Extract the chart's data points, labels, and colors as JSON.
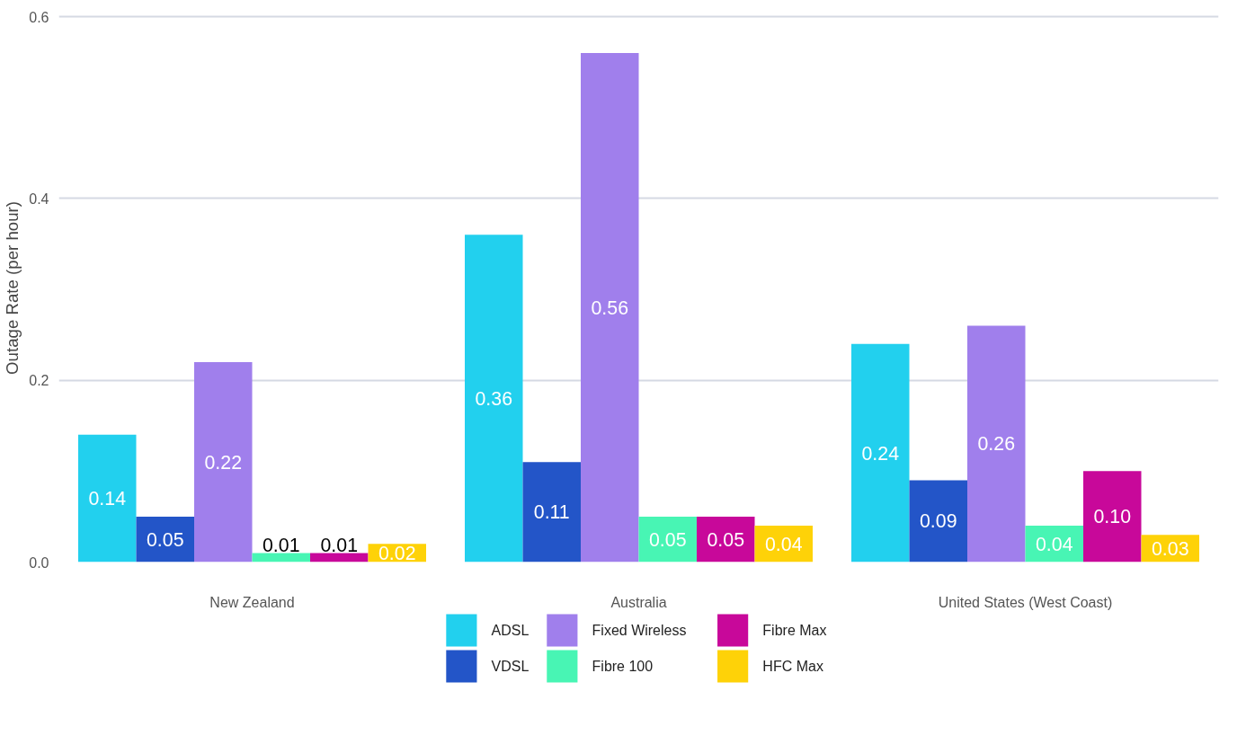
{
  "chart_data": {
    "type": "bar",
    "ylabel": "Outage Rate (per hour)",
    "categories": [
      "New Zealand",
      "Australia",
      "United States (West Coast)"
    ],
    "series": [
      {
        "name": "ADSL",
        "color": "#22d0ee",
        "values": [
          0.14,
          0.36,
          0.24
        ]
      },
      {
        "name": "VDSL",
        "color": "#2355c8",
        "values": [
          0.05,
          0.11,
          0.09
        ]
      },
      {
        "name": "Fixed Wireless",
        "color": "#a07fec",
        "values": [
          0.22,
          0.56,
          0.26
        ]
      },
      {
        "name": "Fibre 100",
        "color": "#48f5b4",
        "values": [
          0.01,
          0.05,
          0.04
        ]
      },
      {
        "name": "Fibre Max",
        "color": "#c8089a",
        "values": [
          0.01,
          0.05,
          0.1
        ],
        "value_labels": [
          "0.01",
          "0.05",
          "0.10"
        ]
      },
      {
        "name": "HFC Max",
        "color": "#fed208",
        "values": [
          0.02,
          0.04,
          0.03
        ]
      }
    ],
    "ylim": [
      0,
      0.6
    ],
    "yticks": [
      {
        "value": 0,
        "label": "0.0"
      },
      {
        "value": 0.2,
        "label": "0.2"
      },
      {
        "value": 0.4,
        "label": "0.4"
      },
      {
        "value": 0.6,
        "label": "0.6"
      }
    ],
    "grid": "y",
    "legend": "bottom",
    "data_labels": true
  }
}
